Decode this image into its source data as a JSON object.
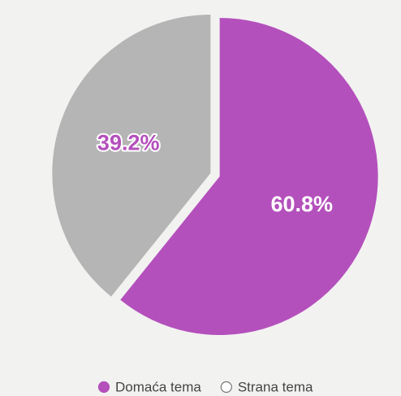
{
  "chart_data": {
    "type": "pie",
    "categories": [
      "Domaća tema",
      "Strana tema"
    ],
    "values": [
      60.8,
      39.2
    ],
    "value_labels": [
      "60.8%",
      "39.2%"
    ],
    "colors": [
      "#b450bc",
      "#b5b5b5"
    ]
  }
}
